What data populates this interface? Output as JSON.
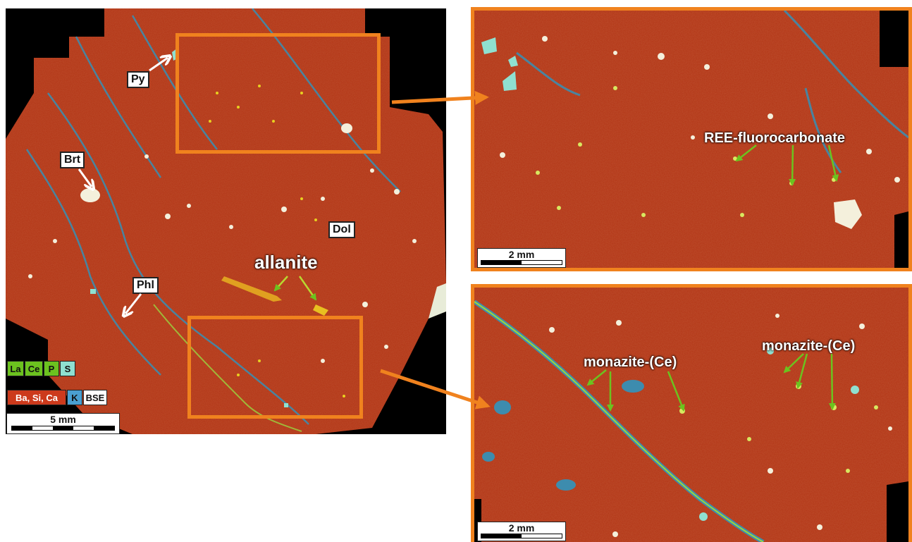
{
  "colors": {
    "matrix": "#b23314",
    "frame": "#f0821e",
    "arrow_green": "#6cc21f",
    "phlogopite_blue": "#3d8cae",
    "pyrite_cyan": "#8fe0d0",
    "allanite": "#e0a020",
    "bse": "#f4f0dc"
  },
  "labels": {
    "py": "Py",
    "brt": "Brt",
    "dol": "Dol",
    "phl": "Phl",
    "allanite": "allanite",
    "ree": "REE-fluorocarbonate",
    "monazite_1": "monazite-(Ce)",
    "monazite_2": "monazite-(Ce)"
  },
  "legend": {
    "row1": [
      "La",
      "Ce",
      "P",
      "S"
    ],
    "row2": [
      "Ba, Si, Ca",
      "K",
      "BSE"
    ]
  },
  "scalebars": {
    "main": "5 mm",
    "top_right": "2 mm",
    "bottom_right": "2 mm"
  }
}
